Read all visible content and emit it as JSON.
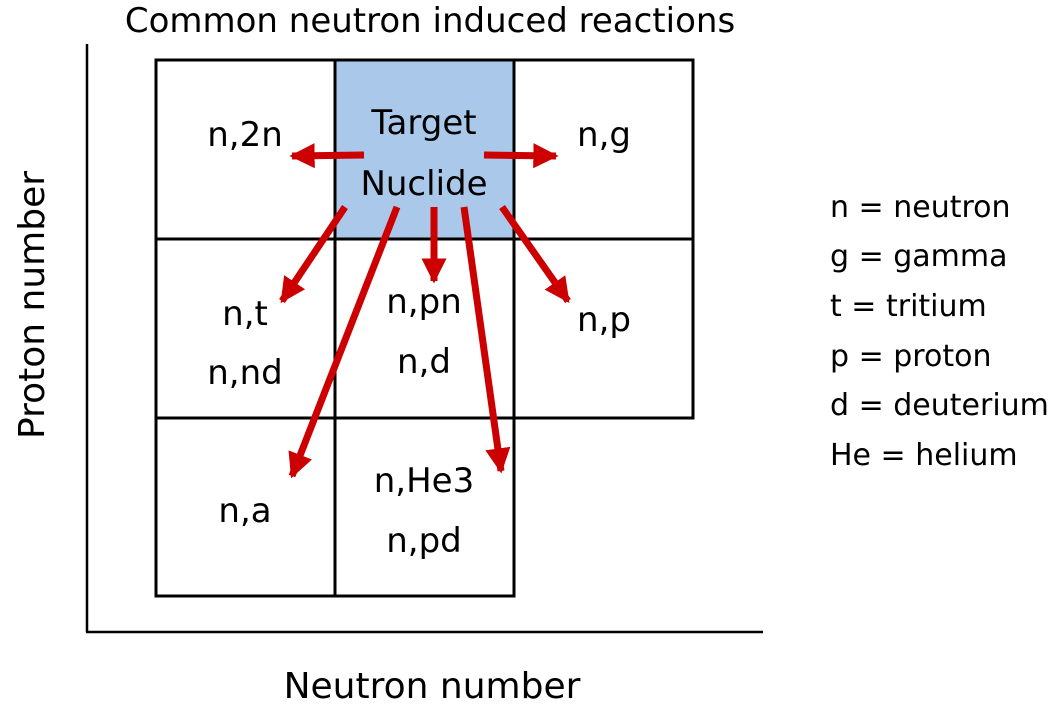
{
  "title": "Common neutron induced reactions",
  "axes": {
    "x_label": "Neutron number",
    "y_label": "Proton number"
  },
  "cells": {
    "target": [
      "Target",
      "Nuclide"
    ],
    "n_2n": [
      "n,2n"
    ],
    "n_g": [
      "n,g"
    ],
    "n_t": [
      "n,t",
      "n,nd"
    ],
    "n_pn": [
      "n,pn",
      "n,d"
    ],
    "n_p": [
      "n,p"
    ],
    "n_a": [
      "n,a"
    ],
    "n_he3": [
      "n,He3",
      "n,pd"
    ]
  },
  "legend": [
    "n = neutron",
    "g = gamma",
    "t = tritium",
    "p = proton",
    "d = deuterium",
    "He = helium"
  ],
  "colors": {
    "target_fill": "#a9c8ea",
    "arrow": "#cc0000",
    "grid": "#000000"
  }
}
